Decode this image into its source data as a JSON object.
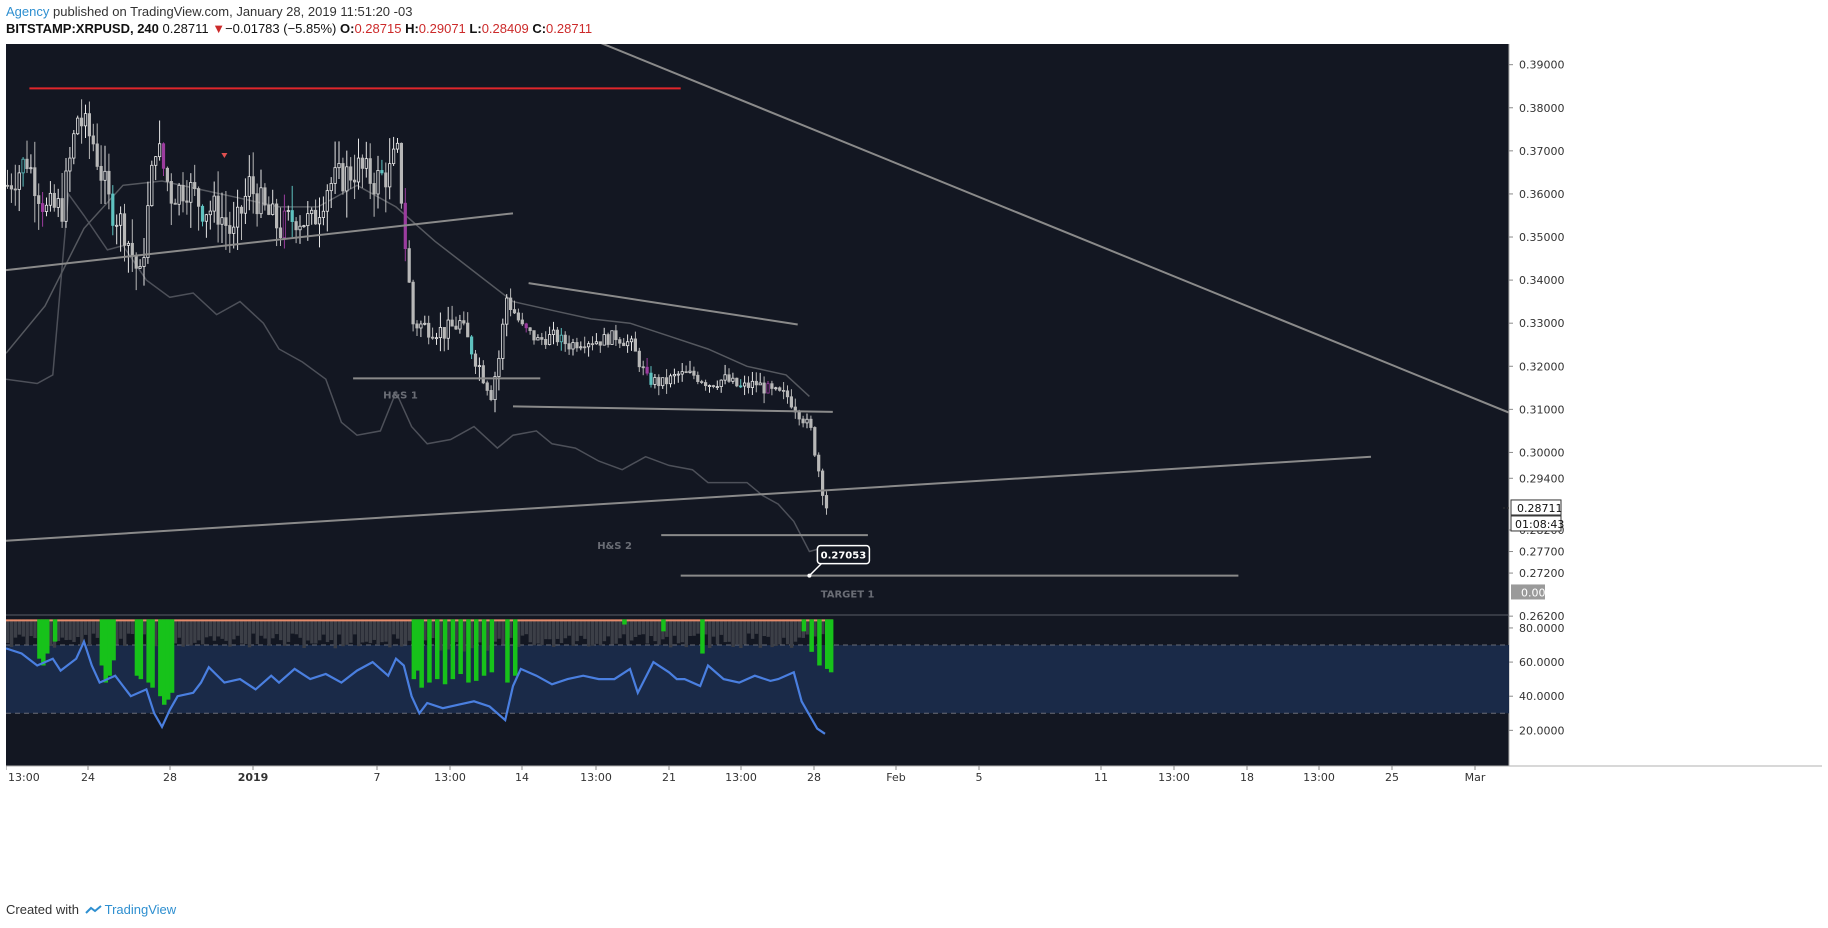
{
  "header": {
    "author": "Agency",
    "published": "published on TradingView.com, January 28, 2019 11:51:20 -03",
    "symbol": "BITSTAMP:XRPUSD, 240",
    "last": "0.28711",
    "arrow": "▼",
    "change": "−0.01783 (−5.85%)",
    "o_label": "O:",
    "o": "0.28715",
    "h_label": "H:",
    "h": "0.29071",
    "l_label": "L:",
    "l": "0.28409",
    "c_label": "C:",
    "c": "0.28711"
  },
  "footer": {
    "created": "Created with",
    "brand": "TradingView"
  },
  "colors": {
    "background": "#131722",
    "candle_up": "#5ec2c0",
    "candle_down": "#c8c8c8",
    "candle_purple": "#9b3c9e",
    "resistance": "#e0262b",
    "trendline": "#8a8a8a",
    "rsi_line": "#4a7fe0",
    "rsi_band": "#1a2a48",
    "volume_green": "#17c21a",
    "volume_gray": "#3c3f47"
  },
  "chart_data": [
    {
      "type": "candlestick",
      "symbol": "BITSTAMP:XRPUSD",
      "interval": "240",
      "x_tick_labels": [
        "13:00",
        "24",
        "28",
        "2019",
        "7",
        "13:00",
        "14",
        "13:00",
        "21",
        "13:00",
        "28",
        "Feb",
        "5",
        "11",
        "13:00",
        "18",
        "13:00",
        "25",
        "Mar"
      ],
      "y_tick_labels": [
        "0.39000",
        "0.38000",
        "0.37000",
        "0.36000",
        "0.35000",
        "0.34000",
        "0.33000",
        "0.32000",
        "0.31000",
        "0.30000",
        "0.29400",
        "0.28200",
        "0.27700",
        "0.27200",
        "0.26200"
      ],
      "ylim": [
        0.2625,
        0.3948
      ],
      "last_price_label": "0.28711",
      "countdown_label": "01:08:43",
      "zero_label": "0.00",
      "price_path": [
        [
          0,
          0.362
        ],
        [
          5,
          0.368
        ],
        [
          10,
          0.356
        ],
        [
          14,
          0.357
        ],
        [
          18,
          0.378
        ],
        [
          22,
          0.372
        ],
        [
          26,
          0.358
        ],
        [
          30,
          0.352
        ],
        [
          34,
          0.34
        ],
        [
          38,
          0.372
        ],
        [
          42,
          0.36
        ],
        [
          46,
          0.362
        ],
        [
          50,
          0.357
        ],
        [
          54,
          0.356
        ],
        [
          58,
          0.35
        ],
        [
          62,
          0.362
        ],
        [
          66,
          0.356
        ],
        [
          70,
          0.352
        ],
        [
          74,
          0.355
        ],
        [
          78,
          0.353
        ],
        [
          82,
          0.362
        ],
        [
          86,
          0.364
        ],
        [
          90,
          0.366
        ],
        [
          94,
          0.363
        ],
        [
          98,
          0.365
        ],
        [
          100,
          0.37
        ],
        [
          102,
          0.348
        ],
        [
          104,
          0.33
        ],
        [
          108,
          0.329
        ],
        [
          112,
          0.328
        ],
        [
          116,
          0.33
        ],
        [
          120,
          0.322
        ],
        [
          124,
          0.314
        ],
        [
          126,
          0.322
        ],
        [
          128,
          0.336
        ],
        [
          132,
          0.329
        ],
        [
          136,
          0.326
        ],
        [
          140,
          0.327
        ],
        [
          144,
          0.325
        ],
        [
          148,
          0.326
        ],
        [
          152,
          0.326
        ],
        [
          156,
          0.327
        ],
        [
          160,
          0.325
        ],
        [
          164,
          0.317
        ],
        [
          168,
          0.316
        ],
        [
          172,
          0.318
        ],
        [
          176,
          0.318
        ],
        [
          180,
          0.316
        ],
        [
          184,
          0.317
        ],
        [
          188,
          0.315
        ],
        [
          192,
          0.316
        ],
        [
          196,
          0.314
        ],
        [
          200,
          0.313
        ],
        [
          204,
          0.308
        ],
        [
          206,
          0.305
        ],
        [
          208,
          0.296
        ],
        [
          210,
          0.287
        ]
      ],
      "overlay_series": [
        {
          "values": [
            [
              0,
              0.317
            ],
            [
              8,
              0.316
            ],
            [
              12,
              0.318
            ],
            [
              16,
              0.36
            ],
            [
              20,
              0.355
            ],
            [
              26,
              0.347
            ],
            [
              30,
              0.348
            ],
            [
              36,
              0.34
            ],
            [
              42,
              0.336
            ],
            [
              48,
              0.337
            ],
            [
              54,
              0.332
            ],
            [
              60,
              0.335
            ],
            [
              66,
              0.33
            ],
            [
              70,
              0.324
            ],
            [
              76,
              0.321
            ],
            [
              82,
              0.317
            ],
            [
              86,
              0.307
            ],
            [
              90,
              0.304
            ],
            [
              96,
              0.305
            ],
            [
              100,
              0.314
            ],
            [
              104,
              0.306
            ],
            [
              108,
              0.302
            ],
            [
              114,
              0.303
            ],
            [
              120,
              0.306
            ],
            [
              126,
              0.301
            ],
            [
              130,
              0.304
            ],
            [
              136,
              0.305
            ],
            [
              140,
              0.302
            ],
            [
              146,
              0.301
            ],
            [
              152,
              0.298
            ],
            [
              158,
              0.296
            ],
            [
              164,
              0.299
            ],
            [
              170,
              0.297
            ],
            [
              176,
              0.296
            ],
            [
              180,
              0.293
            ],
            [
              186,
              0.293
            ],
            [
              190,
              0.293
            ],
            [
              194,
              0.29
            ],
            [
              198,
              0.288
            ],
            [
              202,
              0.284
            ],
            [
              206,
              0.277
            ],
            [
              208,
              0.2775
            ]
          ]
        },
        {
          "values": [
            [
              0,
              0.323
            ],
            [
              10,
              0.334
            ],
            [
              20,
              0.352
            ],
            [
              30,
              0.362
            ],
            [
              40,
              0.363
            ],
            [
              50,
              0.361
            ],
            [
              60,
              0.359
            ],
            [
              70,
              0.357
            ],
            [
              80,
              0.357
            ],
            [
              90,
              0.362
            ],
            [
              100,
              0.357
            ],
            [
              110,
              0.349
            ],
            [
              120,
              0.342
            ],
            [
              130,
              0.335
            ],
            [
              140,
              0.333
            ],
            [
              150,
              0.331
            ],
            [
              160,
              0.33
            ],
            [
              170,
              0.327
            ],
            [
              180,
              0.324
            ],
            [
              190,
              0.32
            ],
            [
              200,
              0.318
            ],
            [
              206,
              0.313
            ]
          ]
        }
      ],
      "annotations": [
        {
          "type": "horizontal",
          "label": "resistance",
          "y": 0.3845,
          "x_from": 6,
          "x_to": 173
        },
        {
          "type": "trendline",
          "from": [
            145,
            0.3978
          ],
          "to": [
            392,
            0.3068
          ]
        },
        {
          "type": "trendline",
          "from": [
            0,
            0.3423
          ],
          "to": [
            130,
            0.3555
          ]
        },
        {
          "type": "trendline",
          "from": [
            0,
            0.2795
          ],
          "to": [
            350,
            0.299
          ]
        },
        {
          "type": "trendline",
          "from": [
            134,
            0.3393
          ],
          "to": [
            203,
            0.3297
          ]
        },
        {
          "type": "horizontal",
          "label": "H&S 1",
          "y": 0.3172,
          "x_from": 89,
          "x_to": 137
        },
        {
          "type": "trendline",
          "from": [
            130,
            0.3107
          ],
          "to": [
            212,
            0.3094
          ]
        },
        {
          "type": "horizontal",
          "label": "H&S 2",
          "y": 0.2808,
          "x_from": 168,
          "x_to": 221
        },
        {
          "type": "horizontal",
          "label": "TARGET 1",
          "y": 0.2714,
          "x_from": 173,
          "x_to": 316
        },
        {
          "type": "callout",
          "label": "0.27053",
          "at": [
            206,
            0.2714
          ]
        }
      ]
    },
    {
      "type": "bar+line",
      "title": "",
      "y_tick_labels": [
        "80.0000",
        "60.0000",
        "40.0000",
        "20.0000"
      ],
      "ylim": [
        12,
        87
      ],
      "bands": [
        30,
        70
      ],
      "rsi": [
        [
          0,
          68
        ],
        [
          4,
          65
        ],
        [
          8,
          58
        ],
        [
          12,
          62
        ],
        [
          14,
          55
        ],
        [
          18,
          62
        ],
        [
          20,
          72
        ],
        [
          22,
          58
        ],
        [
          24,
          48
        ],
        [
          28,
          52
        ],
        [
          30,
          46
        ],
        [
          32,
          40
        ],
        [
          36,
          44
        ],
        [
          38,
          30
        ],
        [
          40,
          22
        ],
        [
          42,
          32
        ],
        [
          44,
          40
        ],
        [
          48,
          42
        ],
        [
          50,
          48
        ],
        [
          52,
          57
        ],
        [
          56,
          48
        ],
        [
          60,
          50
        ],
        [
          64,
          44
        ],
        [
          68,
          52
        ],
        [
          70,
          48
        ],
        [
          74,
          56
        ],
        [
          78,
          50
        ],
        [
          82,
          53
        ],
        [
          86,
          48
        ],
        [
          90,
          55
        ],
        [
          94,
          60
        ],
        [
          98,
          52
        ],
        [
          100,
          62
        ],
        [
          102,
          58
        ],
        [
          104,
          40
        ],
        [
          106,
          30
        ],
        [
          108,
          36
        ],
        [
          112,
          33
        ],
        [
          116,
          35
        ],
        [
          120,
          37
        ],
        [
          124,
          34
        ],
        [
          128,
          26
        ],
        [
          130,
          46
        ],
        [
          132,
          56
        ],
        [
          136,
          52
        ],
        [
          140,
          47
        ],
        [
          144,
          50
        ],
        [
          148,
          52
        ],
        [
          152,
          50
        ],
        [
          156,
          50
        ],
        [
          160,
          56
        ],
        [
          162,
          42
        ],
        [
          166,
          60
        ],
        [
          170,
          54
        ],
        [
          172,
          50
        ],
        [
          174,
          50
        ],
        [
          178,
          46
        ],
        [
          180,
          58
        ],
        [
          184,
          50
        ],
        [
          188,
          48
        ],
        [
          192,
          52
        ],
        [
          196,
          49
        ],
        [
          198,
          50
        ],
        [
          202,
          54
        ],
        [
          204,
          37
        ],
        [
          206,
          29
        ],
        [
          208,
          21
        ],
        [
          210,
          18
        ]
      ],
      "volume_green": [
        [
          8,
          62
        ],
        [
          9,
          58
        ],
        [
          10,
          65
        ],
        [
          12,
          72
        ],
        [
          24,
          58
        ],
        [
          25,
          48
        ],
        [
          26,
          52
        ],
        [
          27,
          61
        ],
        [
          33,
          52
        ],
        [
          34,
          50
        ],
        [
          36,
          48
        ],
        [
          37,
          45
        ],
        [
          39,
          40
        ],
        [
          40,
          35
        ],
        [
          41,
          38
        ],
        [
          42,
          42
        ],
        [
          104,
          50
        ],
        [
          105,
          55
        ],
        [
          106,
          45
        ],
        [
          108,
          48
        ],
        [
          110,
          50
        ],
        [
          112,
          47
        ],
        [
          114,
          50
        ],
        [
          116,
          53
        ],
        [
          118,
          48
        ],
        [
          120,
          49
        ],
        [
          122,
          52
        ],
        [
          124,
          54
        ],
        [
          128,
          48
        ],
        [
          130,
          52
        ],
        [
          158,
          82
        ],
        [
          168,
          78
        ],
        [
          178,
          65
        ],
        [
          204,
          78
        ],
        [
          206,
          66
        ],
        [
          208,
          58
        ],
        [
          210,
          56
        ],
        [
          211,
          54
        ]
      ]
    }
  ]
}
